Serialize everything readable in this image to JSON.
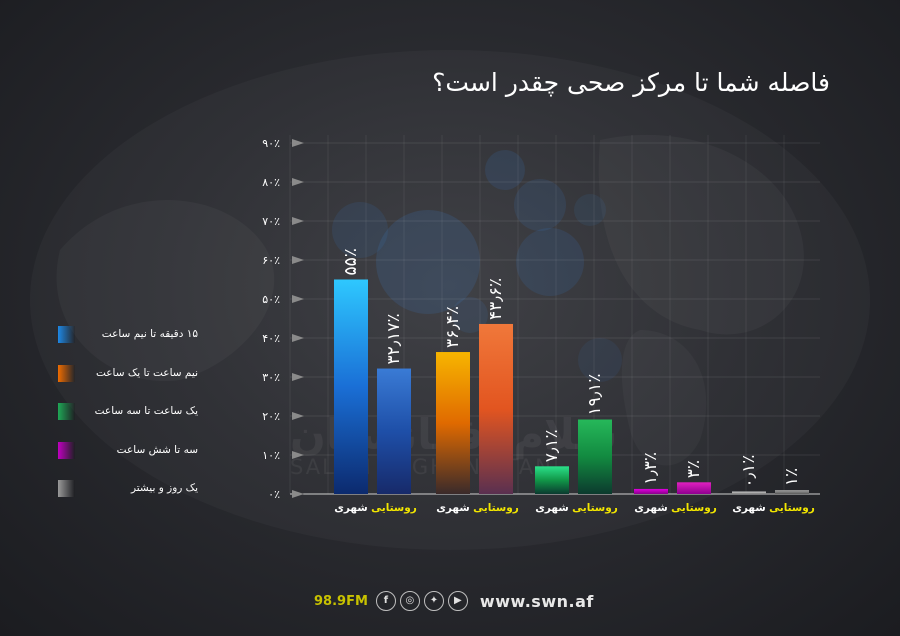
{
  "title": "فاصله شما تا مرکز صحی چقدر است؟",
  "legend": [
    {
      "label": "۱۵ دقیقه تا نیم ساعت",
      "color": "#1e88e5"
    },
    {
      "label": "نیم ساعت تا یک ساعت",
      "color": "#ef6c00"
    },
    {
      "label": "یک ساعت تا سه ساعت",
      "color": "#1fa856"
    },
    {
      "label": "سه تا شش ساعت",
      "color": "#c000c0"
    },
    {
      "label": "یک روز و بیشتر",
      "color": "#9a9a9a"
    }
  ],
  "watermark": {
    "line1": "سلام افغانستان",
    "line2": "SALAM AFGHANISTAN"
  },
  "footer": {
    "frequency": "98.9FM",
    "icons": [
      "facebook-icon",
      "instagram-icon",
      "twitter-icon",
      "youtube-icon"
    ],
    "website": "www.swn.af"
  },
  "chart_data": {
    "type": "bar",
    "title": "فاصله شما تا مرکز صحی چقدر است؟",
    "categories": [
      "۱۵ دقیقه تا نیم ساعت",
      "نیم ساعت تا یک ساعت",
      "یک ساعت تا سه ساعت",
      "سه تا شش ساعت",
      "یک روز و بیشتر"
    ],
    "series": [
      {
        "name": "شهری",
        "values": [
          55,
          36.4,
          7.1,
          1.3,
          0.1
        ],
        "labels": [
          "۵۵٪",
          "۳۶٫۴٪",
          "۷٫۱٪",
          "۱٫۳٪",
          "۰٫۱٪"
        ]
      },
      {
        "name": "روستایی",
        "values": [
          32.17,
          43.6,
          19.1,
          3,
          1
        ],
        "labels": [
          "۳۲٫۱۷٪",
          "۴۳٫۶٪",
          "۱۹٫۱٪",
          "۳٪",
          "۱٪"
        ]
      }
    ],
    "series_label_colors": [
      "#ffffff",
      "#f2e600"
    ],
    "yticks": [
      "۰٪",
      "۱۰٪",
      "۲۰٪",
      "۳۰٪",
      "۴۰٪",
      "۵۰٪",
      "۶۰٪",
      "۷۰٪",
      "۸۰٪",
      "۹۰٪"
    ],
    "ylim": [
      0,
      90
    ],
    "grid": true,
    "legend_position": "left"
  }
}
